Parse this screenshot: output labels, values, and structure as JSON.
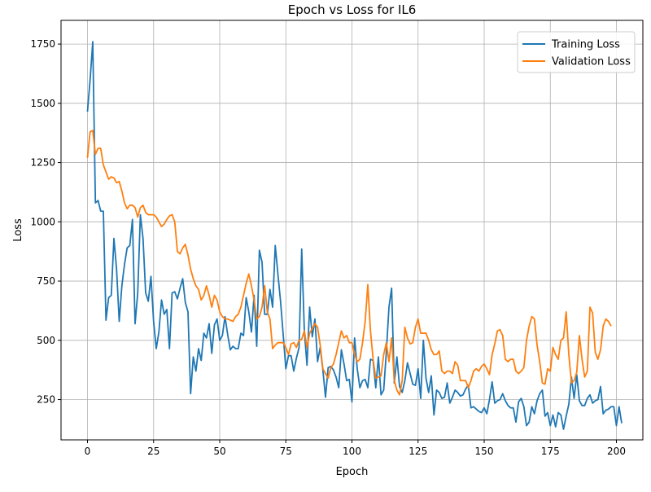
{
  "chart_data": {
    "type": "line",
    "title": "Epoch vs Loss for IL6",
    "xlabel": "Epoch",
    "ylabel": "Loss",
    "xlim": [
      -10,
      210
    ],
    "ylim": [
      80,
      1850
    ],
    "xticks": [
      0,
      25,
      50,
      75,
      100,
      125,
      150,
      175,
      200
    ],
    "yticks": [
      250,
      500,
      750,
      1000,
      1250,
      1500,
      1750
    ],
    "grid": true,
    "legend_position": "top-right",
    "series": [
      {
        "name": "Training Loss",
        "color": "#1f77b4",
        "values": [
          1465,
          1600,
          1760,
          1080,
          1090,
          1045,
          1045,
          585,
          680,
          690,
          930,
          800,
          580,
          730,
          820,
          890,
          900,
          1010,
          570,
          700,
          1030,
          930,
          700,
          665,
          770,
          580,
          465,
          535,
          670,
          610,
          630,
          465,
          700,
          705,
          675,
          720,
          760,
          660,
          620,
          275,
          430,
          370,
          465,
          415,
          530,
          510,
          570,
          445,
          565,
          590,
          500,
          520,
          600,
          525,
          460,
          475,
          465,
          465,
          530,
          520,
          680,
          620,
          535,
          690,
          475,
          880,
          830,
          610,
          610,
          715,
          640,
          900,
          780,
          665,
          525,
          380,
          435,
          435,
          370,
          425,
          470,
          885,
          540,
          395,
          640,
          515,
          590,
          410,
          470,
          375,
          260,
          385,
          390,
          375,
          345,
          300,
          460,
          400,
          330,
          335,
          240,
          510,
          380,
          300,
          330,
          335,
          300,
          420,
          415,
          300,
          430,
          270,
          290,
          450,
          640,
          720,
          320,
          430,
          305,
          280,
          330,
          405,
          360,
          315,
          310,
          380,
          255,
          500,
          340,
          280,
          350,
          185,
          290,
          280,
          255,
          260,
          320,
          235,
          260,
          290,
          280,
          265,
          270,
          295,
          310,
          215,
          220,
          210,
          200,
          195,
          215,
          190,
          250,
          325,
          235,
          245,
          250,
          275,
          245,
          225,
          215,
          215,
          155,
          240,
          255,
          220,
          140,
          155,
          220,
          190,
          245,
          275,
          290,
          180,
          195,
          140,
          185,
          135,
          195,
          185,
          125,
          180,
          230,
          345,
          255,
          355,
          245,
          225,
          225,
          255,
          270,
          235,
          245,
          250,
          305,
          190,
          205,
          210,
          220,
          220,
          140,
          220,
          150
        ]
      },
      {
        "name": "Validation Loss",
        "color": "#ff7f0e",
        "values": [
          1270,
          1380,
          1385,
          1285,
          1310,
          1310,
          1240,
          1210,
          1180,
          1190,
          1185,
          1165,
          1170,
          1130,
          1080,
          1055,
          1070,
          1070,
          1060,
          1020,
          1060,
          1070,
          1040,
          1030,
          1030,
          1030,
          1020,
          1000,
          980,
          990,
          1010,
          1025,
          1030,
          1000,
          875,
          865,
          890,
          905,
          860,
          800,
          760,
          730,
          715,
          670,
          690,
          730,
          690,
          640,
          690,
          670,
          620,
          600,
          590,
          590,
          585,
          580,
          600,
          610,
          640,
          690,
          740,
          780,
          730,
          670,
          590,
          600,
          640,
          730,
          620,
          590,
          465,
          480,
          490,
          490,
          490,
          470,
          440,
          485,
          490,
          470,
          500,
          505,
          540,
          470,
          530,
          550,
          570,
          555,
          480,
          380,
          360,
          340,
          385,
          400,
          440,
          490,
          540,
          510,
          520,
          490,
          490,
          440,
          410,
          420,
          490,
          580,
          735,
          540,
          420,
          340,
          345,
          350,
          440,
          490,
          410,
          510,
          330,
          290,
          270,
          330,
          555,
          510,
          485,
          490,
          555,
          590,
          530,
          530,
          530,
          500,
          460,
          440,
          440,
          455,
          370,
          360,
          370,
          370,
          360,
          410,
          395,
          330,
          330,
          330,
          300,
          330,
          370,
          380,
          370,
          390,
          400,
          380,
          355,
          440,
          485,
          540,
          545,
          520,
          420,
          410,
          420,
          420,
          370,
          360,
          370,
          385,
          500,
          560,
          600,
          590,
          480,
          410,
          320,
          315,
          380,
          370,
          470,
          440,
          420,
          500,
          510,
          620,
          440,
          320,
          330,
          365,
          520,
          420,
          345,
          370,
          640,
          615,
          450,
          420,
          460,
          560,
          590,
          580,
          560
        ]
      }
    ]
  }
}
